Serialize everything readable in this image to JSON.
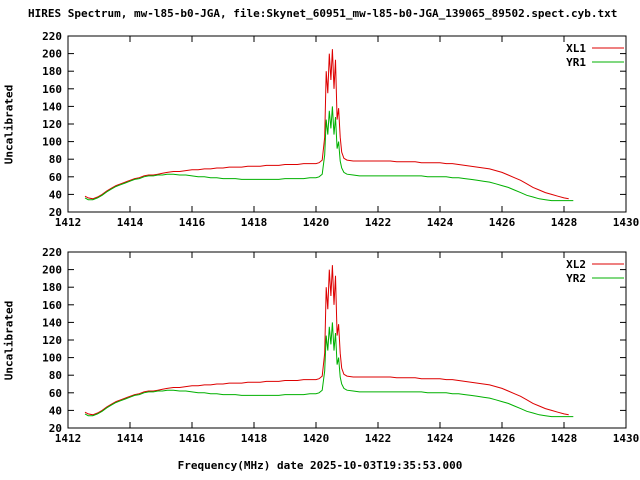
{
  "page": {
    "title": "HIRES Spectrum, mw-l85-b0-JGA, file:Skynet_60951_mw-l85-b0-JGA_139065_89502.spect.cyb.txt",
    "xlabel": "Frequency(MHz) date 2025-10-03T19:35:53.000",
    "ylabel": "Uncalibrated"
  },
  "chart_data": {
    "type": "line",
    "title": "HIRES Spectrum, mw-l85-b0-JGA, file:Skynet_60951_mw-l85-b0-JGA_139065_89502.spect.cyb.txt",
    "xlabel": "Frequency(MHz) date 2025-10-03T19:35:53.000",
    "ylabel": "Uncalibrated",
    "x_range": [
      1412,
      1430
    ],
    "y_range": [
      20,
      220
    ],
    "x_ticks": [
      1412,
      1414,
      1416,
      1418,
      1420,
      1422,
      1424,
      1426,
      1428,
      1430
    ],
    "y_ticks": [
      20,
      40,
      60,
      80,
      100,
      120,
      140,
      160,
      180,
      200,
      220
    ],
    "grid": false,
    "legend_position": "top-right",
    "colors": {
      "red": "#dd0000",
      "green": "#00b000"
    },
    "points": {
      "red": [
        [
          1412.55,
          38
        ],
        [
          1412.65,
          36
        ],
        [
          1412.8,
          35
        ],
        [
          1412.95,
          37
        ],
        [
          1413.1,
          40
        ],
        [
          1413.25,
          44
        ],
        [
          1413.4,
          47
        ],
        [
          1413.55,
          50
        ],
        [
          1413.7,
          52
        ],
        [
          1413.85,
          54
        ],
        [
          1414.0,
          56
        ],
        [
          1414.15,
          58
        ],
        [
          1414.3,
          59
        ],
        [
          1414.45,
          61
        ],
        [
          1414.6,
          62
        ],
        [
          1414.75,
          62
        ],
        [
          1414.9,
          63
        ],
        [
          1415.05,
          64
        ],
        [
          1415.2,
          65
        ],
        [
          1415.4,
          66
        ],
        [
          1415.6,
          66
        ],
        [
          1415.8,
          67
        ],
        [
          1416.0,
          68
        ],
        [
          1416.2,
          68
        ],
        [
          1416.4,
          69
        ],
        [
          1416.6,
          69
        ],
        [
          1416.8,
          70
        ],
        [
          1417.0,
          70
        ],
        [
          1417.2,
          71
        ],
        [
          1417.4,
          71
        ],
        [
          1417.6,
          71
        ],
        [
          1417.8,
          72
        ],
        [
          1418.0,
          72
        ],
        [
          1418.2,
          72
        ],
        [
          1418.4,
          73
        ],
        [
          1418.6,
          73
        ],
        [
          1418.8,
          73
        ],
        [
          1419.0,
          74
        ],
        [
          1419.2,
          74
        ],
        [
          1419.4,
          74
        ],
        [
          1419.6,
          75
        ],
        [
          1419.8,
          75
        ],
        [
          1420.0,
          75
        ],
        [
          1420.1,
          76
        ],
        [
          1420.2,
          79
        ],
        [
          1420.28,
          105
        ],
        [
          1420.33,
          180
        ],
        [
          1420.38,
          155
        ],
        [
          1420.43,
          200
        ],
        [
          1420.48,
          170
        ],
        [
          1420.53,
          205
        ],
        [
          1420.58,
          160
        ],
        [
          1420.63,
          193
        ],
        [
          1420.68,
          125
        ],
        [
          1420.73,
          138
        ],
        [
          1420.78,
          105
        ],
        [
          1420.83,
          88
        ],
        [
          1420.9,
          81
        ],
        [
          1421.0,
          79
        ],
        [
          1421.2,
          78
        ],
        [
          1421.4,
          78
        ],
        [
          1421.6,
          78
        ],
        [
          1421.8,
          78
        ],
        [
          1422.0,
          78
        ],
        [
          1422.2,
          78
        ],
        [
          1422.4,
          78
        ],
        [
          1422.6,
          77
        ],
        [
          1422.8,
          77
        ],
        [
          1423.0,
          77
        ],
        [
          1423.2,
          77
        ],
        [
          1423.4,
          76
        ],
        [
          1423.6,
          76
        ],
        [
          1423.8,
          76
        ],
        [
          1424.0,
          76
        ],
        [
          1424.2,
          75
        ],
        [
          1424.4,
          75
        ],
        [
          1424.6,
          74
        ],
        [
          1424.8,
          73
        ],
        [
          1425.0,
          72
        ],
        [
          1425.2,
          71
        ],
        [
          1425.4,
          70
        ],
        [
          1425.6,
          69
        ],
        [
          1425.8,
          67
        ],
        [
          1426.0,
          65
        ],
        [
          1426.2,
          62
        ],
        [
          1426.4,
          59
        ],
        [
          1426.6,
          56
        ],
        [
          1426.8,
          52
        ],
        [
          1427.0,
          48
        ],
        [
          1427.2,
          45
        ],
        [
          1427.4,
          42
        ],
        [
          1427.6,
          40
        ],
        [
          1427.8,
          38
        ],
        [
          1428.0,
          36
        ],
        [
          1428.15,
          35
        ]
      ],
      "green": [
        [
          1412.55,
          36
        ],
        [
          1412.65,
          34
        ],
        [
          1412.8,
          34
        ],
        [
          1412.95,
          36
        ],
        [
          1413.1,
          39
        ],
        [
          1413.25,
          43
        ],
        [
          1413.4,
          46
        ],
        [
          1413.55,
          49
        ],
        [
          1413.7,
          51
        ],
        [
          1413.85,
          53
        ],
        [
          1414.0,
          55
        ],
        [
          1414.15,
          57
        ],
        [
          1414.3,
          58
        ],
        [
          1414.45,
          60
        ],
        [
          1414.6,
          61
        ],
        [
          1414.75,
          61
        ],
        [
          1414.9,
          62
        ],
        [
          1415.05,
          62
        ],
        [
          1415.2,
          63
        ],
        [
          1415.4,
          63
        ],
        [
          1415.6,
          62
        ],
        [
          1415.8,
          62
        ],
        [
          1416.0,
          61
        ],
        [
          1416.2,
          60
        ],
        [
          1416.4,
          60
        ],
        [
          1416.6,
          59
        ],
        [
          1416.8,
          59
        ],
        [
          1417.0,
          58
        ],
        [
          1417.2,
          58
        ],
        [
          1417.4,
          58
        ],
        [
          1417.6,
          57
        ],
        [
          1417.8,
          57
        ],
        [
          1418.0,
          57
        ],
        [
          1418.2,
          57
        ],
        [
          1418.4,
          57
        ],
        [
          1418.6,
          57
        ],
        [
          1418.8,
          57
        ],
        [
          1419.0,
          58
        ],
        [
          1419.2,
          58
        ],
        [
          1419.4,
          58
        ],
        [
          1419.6,
          58
        ],
        [
          1419.8,
          59
        ],
        [
          1420.0,
          59
        ],
        [
          1420.1,
          60
        ],
        [
          1420.2,
          63
        ],
        [
          1420.28,
          85
        ],
        [
          1420.33,
          125
        ],
        [
          1420.38,
          108
        ],
        [
          1420.43,
          135
        ],
        [
          1420.48,
          115
        ],
        [
          1420.53,
          140
        ],
        [
          1420.58,
          108
        ],
        [
          1420.63,
          128
        ],
        [
          1420.68,
          92
        ],
        [
          1420.73,
          100
        ],
        [
          1420.78,
          78
        ],
        [
          1420.83,
          70
        ],
        [
          1420.9,
          65
        ],
        [
          1421.0,
          63
        ],
        [
          1421.2,
          62
        ],
        [
          1421.4,
          61
        ],
        [
          1421.6,
          61
        ],
        [
          1421.8,
          61
        ],
        [
          1422.0,
          61
        ],
        [
          1422.2,
          61
        ],
        [
          1422.4,
          61
        ],
        [
          1422.6,
          61
        ],
        [
          1422.8,
          61
        ],
        [
          1423.0,
          61
        ],
        [
          1423.2,
          61
        ],
        [
          1423.4,
          61
        ],
        [
          1423.6,
          60
        ],
        [
          1423.8,
          60
        ],
        [
          1424.0,
          60
        ],
        [
          1424.2,
          60
        ],
        [
          1424.4,
          59
        ],
        [
          1424.6,
          59
        ],
        [
          1424.8,
          58
        ],
        [
          1425.0,
          57
        ],
        [
          1425.2,
          56
        ],
        [
          1425.4,
          55
        ],
        [
          1425.6,
          54
        ],
        [
          1425.8,
          52
        ],
        [
          1426.0,
          50
        ],
        [
          1426.2,
          48
        ],
        [
          1426.4,
          45
        ],
        [
          1426.6,
          42
        ],
        [
          1426.8,
          39
        ],
        [
          1427.0,
          37
        ],
        [
          1427.2,
          35
        ],
        [
          1427.4,
          34
        ],
        [
          1427.6,
          33
        ],
        [
          1427.8,
          33
        ],
        [
          1428.0,
          33
        ],
        [
          1428.3,
          33
        ]
      ]
    },
    "charts": [
      {
        "legend": [
          {
            "label": "XL1",
            "series": "red"
          },
          {
            "label": "YR1",
            "series": "green"
          }
        ]
      },
      {
        "legend": [
          {
            "label": "XL2",
            "series": "red"
          },
          {
            "label": "YR2",
            "series": "green"
          }
        ]
      }
    ]
  }
}
